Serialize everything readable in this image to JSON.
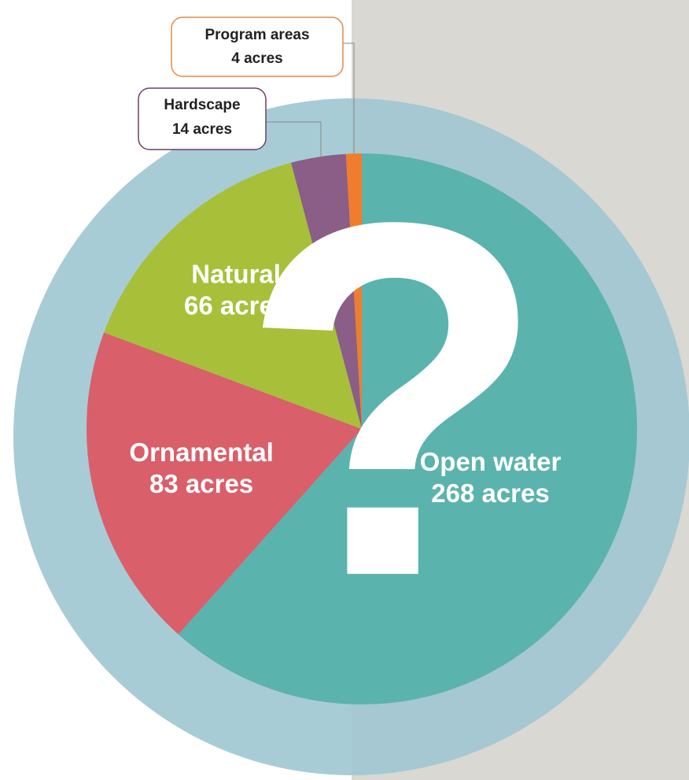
{
  "chart_data": {
    "type": "pie",
    "categories": [
      "Open water",
      "Ornamental",
      "Natural",
      "Hardscape",
      "Program areas"
    ],
    "values": [
      268,
      83,
      66,
      14,
      4
    ],
    "value_labels": [
      "268 acres",
      "83 acres",
      "66 acres",
      "14 acres",
      "4 acres"
    ],
    "colors": [
      "#5bb3ad",
      "#d95f6a",
      "#a8bf3a",
      "#8a5e86",
      "#f07c2c"
    ],
    "callout_colors": [
      "#5bb3ad",
      "#d95f6a",
      "#a8bf3a",
      "#6b3f68",
      "#e08a4a"
    ],
    "annotation": "?"
  }
}
